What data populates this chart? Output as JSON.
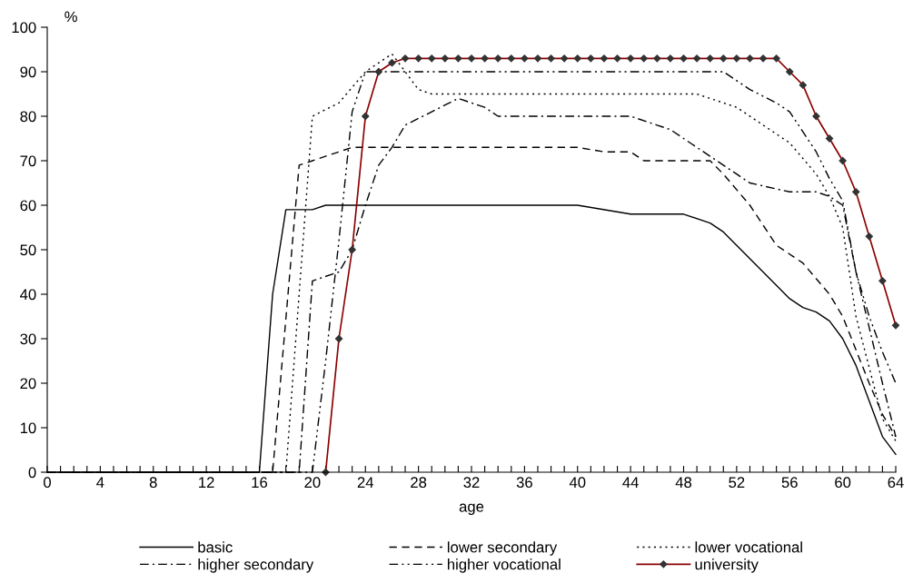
{
  "chart_data": {
    "type": "line",
    "xlabel": "age",
    "ylabel": "%",
    "xlim": [
      0,
      64
    ],
    "ylim": [
      0,
      100
    ],
    "xticks": [
      0,
      {
        "value": 1,
        "label": null
      },
      {
        "value": 2,
        "label": null
      },
      {
        "value": 3,
        "label": null
      },
      4,
      {
        "value": 5,
        "label": null
      },
      {
        "value": 6,
        "label": null
      },
      {
        "value": 7,
        "label": null
      },
      8,
      {
        "value": 9,
        "label": null
      },
      {
        "value": 10,
        "label": null
      },
      {
        "value": 11,
        "label": null
      },
      12,
      {
        "value": 13,
        "label": null
      },
      {
        "value": 14,
        "label": null
      },
      {
        "value": 15,
        "label": null
      },
      16,
      {
        "value": 17,
        "label": null
      },
      {
        "value": 18,
        "label": null
      },
      {
        "value": 19,
        "label": null
      },
      20,
      {
        "value": 21,
        "label": null
      },
      {
        "value": 22,
        "label": null
      },
      {
        "value": 23,
        "label": null
      },
      24,
      {
        "value": 25,
        "label": null
      },
      {
        "value": 26,
        "label": null
      },
      {
        "value": 27,
        "label": null
      },
      28,
      {
        "value": 29,
        "label": null
      },
      {
        "value": 30,
        "label": null
      },
      {
        "value": 31,
        "label": null
      },
      32,
      {
        "value": 33,
        "label": null
      },
      {
        "value": 34,
        "label": null
      },
      {
        "value": 35,
        "label": null
      },
      36,
      {
        "value": 37,
        "label": null
      },
      {
        "value": 38,
        "label": null
      },
      {
        "value": 39,
        "label": null
      },
      40,
      {
        "value": 41,
        "label": null
      },
      {
        "value": 42,
        "label": null
      },
      {
        "value": 43,
        "label": null
      },
      44,
      {
        "value": 45,
        "label": null
      },
      {
        "value": 46,
        "label": null
      },
      {
        "value": 47,
        "label": null
      },
      48,
      {
        "value": 49,
        "label": null
      },
      {
        "value": 50,
        "label": null
      },
      {
        "value": 51,
        "label": null
      },
      52,
      {
        "value": 53,
        "label": null
      },
      {
        "value": 54,
        "label": null
      },
      {
        "value": 55,
        "label": null
      },
      56,
      {
        "value": 57,
        "label": null
      },
      {
        "value": 58,
        "label": null
      },
      {
        "value": 59,
        "label": null
      },
      60,
      {
        "value": 61,
        "label": null
      },
      {
        "value": 62,
        "label": null
      },
      {
        "value": 63,
        "label": null
      },
      64
    ],
    "yticks": [
      0,
      10,
      20,
      30,
      40,
      50,
      60,
      70,
      80,
      90,
      100
    ],
    "grid": false,
    "legend": "bottom",
    "series": [
      {
        "name": "basic",
        "color": "#000000",
        "line_style": "solid",
        "marker": "none",
        "x": [
          0,
          16,
          17,
          18,
          20,
          21,
          40,
          44,
          48,
          50,
          51,
          55,
          56,
          57,
          58,
          59,
          60,
          61,
          63,
          64
        ],
        "values": [
          0,
          0,
          40,
          59,
          59,
          60,
          60,
          58,
          58,
          56,
          54,
          42,
          39,
          37,
          36,
          34,
          30,
          24,
          8,
          4
        ]
      },
      {
        "name": "lower secondary",
        "color": "#000000",
        "line_style": "dashed",
        "marker": "none",
        "x": [
          0,
          17,
          19,
          20,
          22,
          23,
          40,
          42,
          44,
          45,
          50,
          51,
          53,
          55,
          57,
          59,
          60,
          62,
          63,
          64
        ],
        "values": [
          0,
          0,
          69,
          70,
          72,
          73,
          73,
          72,
          72,
          70,
          70,
          67,
          60,
          51,
          47,
          40,
          35,
          20,
          13,
          8
        ]
      },
      {
        "name": "lower vocational",
        "color": "#000000",
        "line_style": "dotted",
        "marker": "none",
        "x": [
          0,
          18,
          20,
          22,
          24,
          26,
          27,
          28,
          29,
          33,
          49,
          50,
          52,
          54,
          56,
          58,
          59,
          60,
          61,
          63,
          64
        ],
        "values": [
          0,
          0,
          80,
          83,
          90,
          94,
          90,
          86,
          85,
          85,
          85,
          84,
          82,
          78,
          74,
          67,
          62,
          55,
          35,
          12,
          7
        ]
      },
      {
        "name": "higher secondary",
        "color": "#000000",
        "line_style": "dashdot",
        "marker": "none",
        "x": [
          0,
          19,
          20,
          22,
          23,
          24,
          25,
          26,
          27,
          29,
          31,
          33,
          34,
          44,
          46,
          47,
          48,
          50,
          52,
          53,
          56,
          58,
          59,
          60,
          61,
          63,
          64
        ],
        "values": [
          0,
          0,
          43,
          45,
          50,
          60,
          69,
          73,
          78,
          81,
          84,
          82,
          80,
          80,
          78,
          77,
          75,
          71,
          67,
          65,
          63,
          63,
          62,
          60,
          45,
          20,
          8
        ]
      },
      {
        "name": "higher vocational",
        "color": "#000000",
        "line_style": "dashdotdot",
        "marker": "none",
        "x": [
          0,
          20,
          21,
          22,
          23,
          24,
          51,
          53,
          55,
          56,
          58,
          59,
          60,
          61,
          62,
          63,
          64
        ],
        "values": [
          0,
          0,
          25,
          52,
          81,
          90,
          90,
          86,
          83,
          81,
          72,
          66,
          61,
          45,
          35,
          27,
          20
        ]
      },
      {
        "name": "university",
        "color": "#8b0000",
        "line_style": "solid",
        "marker": "diamond",
        "x": [
          21,
          22,
          23,
          24,
          25,
          26,
          27,
          28,
          29,
          30,
          31,
          32,
          33,
          34,
          35,
          36,
          37,
          38,
          39,
          40,
          41,
          42,
          43,
          44,
          45,
          46,
          47,
          48,
          49,
          50,
          51,
          52,
          53,
          54,
          55,
          56,
          57,
          58,
          59,
          60,
          61,
          62,
          63,
          64
        ],
        "values": [
          0,
          30,
          50,
          80,
          90,
          92,
          93,
          93,
          93,
          93,
          93,
          93,
          93,
          93,
          93,
          93,
          93,
          93,
          93,
          93,
          93,
          93,
          93,
          93,
          93,
          93,
          93,
          93,
          93,
          93,
          93,
          93,
          93,
          93,
          93,
          90,
          87,
          80,
          75,
          70,
          63,
          53,
          43,
          33
        ]
      }
    ]
  }
}
